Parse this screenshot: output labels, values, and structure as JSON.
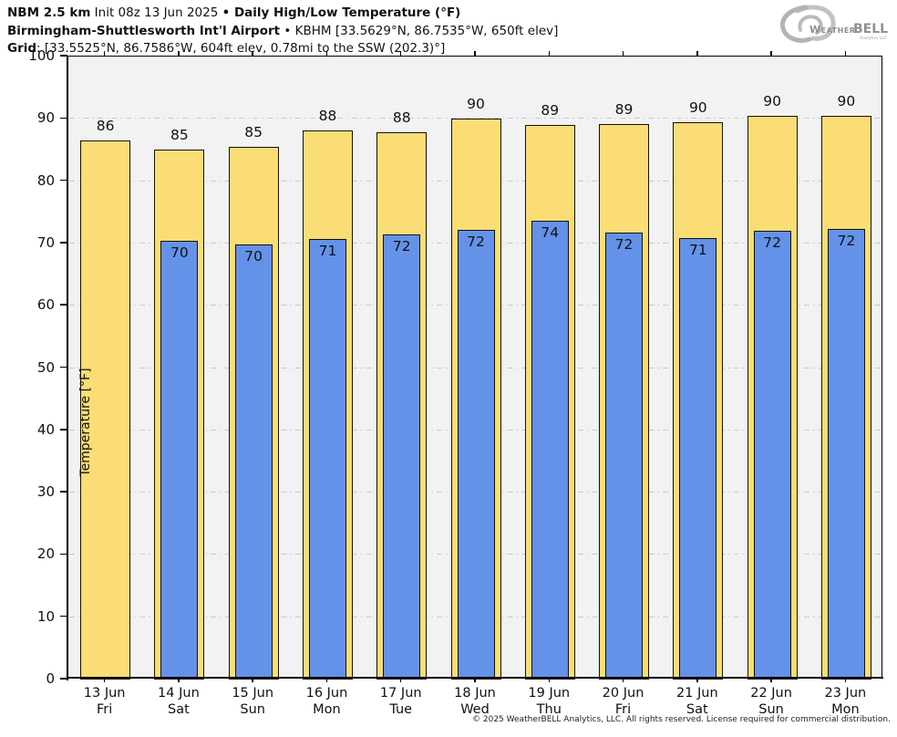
{
  "header": {
    "line1": {
      "model": "NBM 2.5 km",
      "init": " Init 08z 13 Jun 2025 ",
      "bullet": "•",
      "product": " Daily High/Low Temperature (°F)"
    },
    "line2": {
      "station": "Birmingham-Shuttlesworth Int'l Airport",
      "bullet": " • ",
      "details": "KBHM [33.5629°N, 86.7535°W, 650ft elev]"
    },
    "line3": {
      "label": "Grid",
      "details": ": [33.5525°N, 86.7586°W, 604ft elev, 0.78mi to the SSW (202.3)°]"
    }
  },
  "logo": {
    "name": "WeatherBELL",
    "part1": "Weather",
    "part2": "BELL",
    "subtitle": "Analytics LLC"
  },
  "chart_data": {
    "type": "bar",
    "title": "Daily High/Low Temperature (°F)",
    "categories": [
      "13 Jun",
      "14 Jun",
      "15 Jun",
      "16 Jun",
      "17 Jun",
      "18 Jun",
      "19 Jun",
      "20 Jun",
      "21 Jun",
      "22 Jun",
      "23 Jun"
    ],
    "weekdays": [
      "Fri",
      "Sat",
      "Sun",
      "Mon",
      "Tue",
      "Wed",
      "Thu",
      "Fri",
      "Sat",
      "Sun",
      "Mon"
    ],
    "series": [
      {
        "name": "Daily High",
        "color": "#FBDD75",
        "values": [
          86,
          85,
          85,
          88,
          88,
          90,
          89,
          89,
          90,
          90,
          90
        ],
        "bar_tops_f": [
          86.5,
          85.0,
          85.5,
          88.2,
          87.9,
          90.0,
          89.0,
          89.1,
          89.5,
          90.5,
          90.5
        ]
      },
      {
        "name": "Daily Low",
        "color": "#6392E8",
        "values": [
          null,
          70,
          70,
          71,
          72,
          72,
          74,
          72,
          71,
          72,
          72
        ],
        "bar_tops_f": [
          null,
          70.4,
          69.8,
          70.7,
          71.5,
          72.2,
          73.7,
          71.8,
          70.9,
          72.0,
          72.3
        ]
      }
    ],
    "ylabel": "Temperature [°F]",
    "ylim": [
      0,
      100
    ],
    "ytick_step": 10,
    "grid": "horizontal dash-dot",
    "legend": "none",
    "plot_bg": "#F2F2F2",
    "edge_color": "#111111"
  },
  "footer": {
    "copyright": "© 2025 WeatherBELL Analytics, LLC. All rights reserved. License required for commercial distribution."
  }
}
